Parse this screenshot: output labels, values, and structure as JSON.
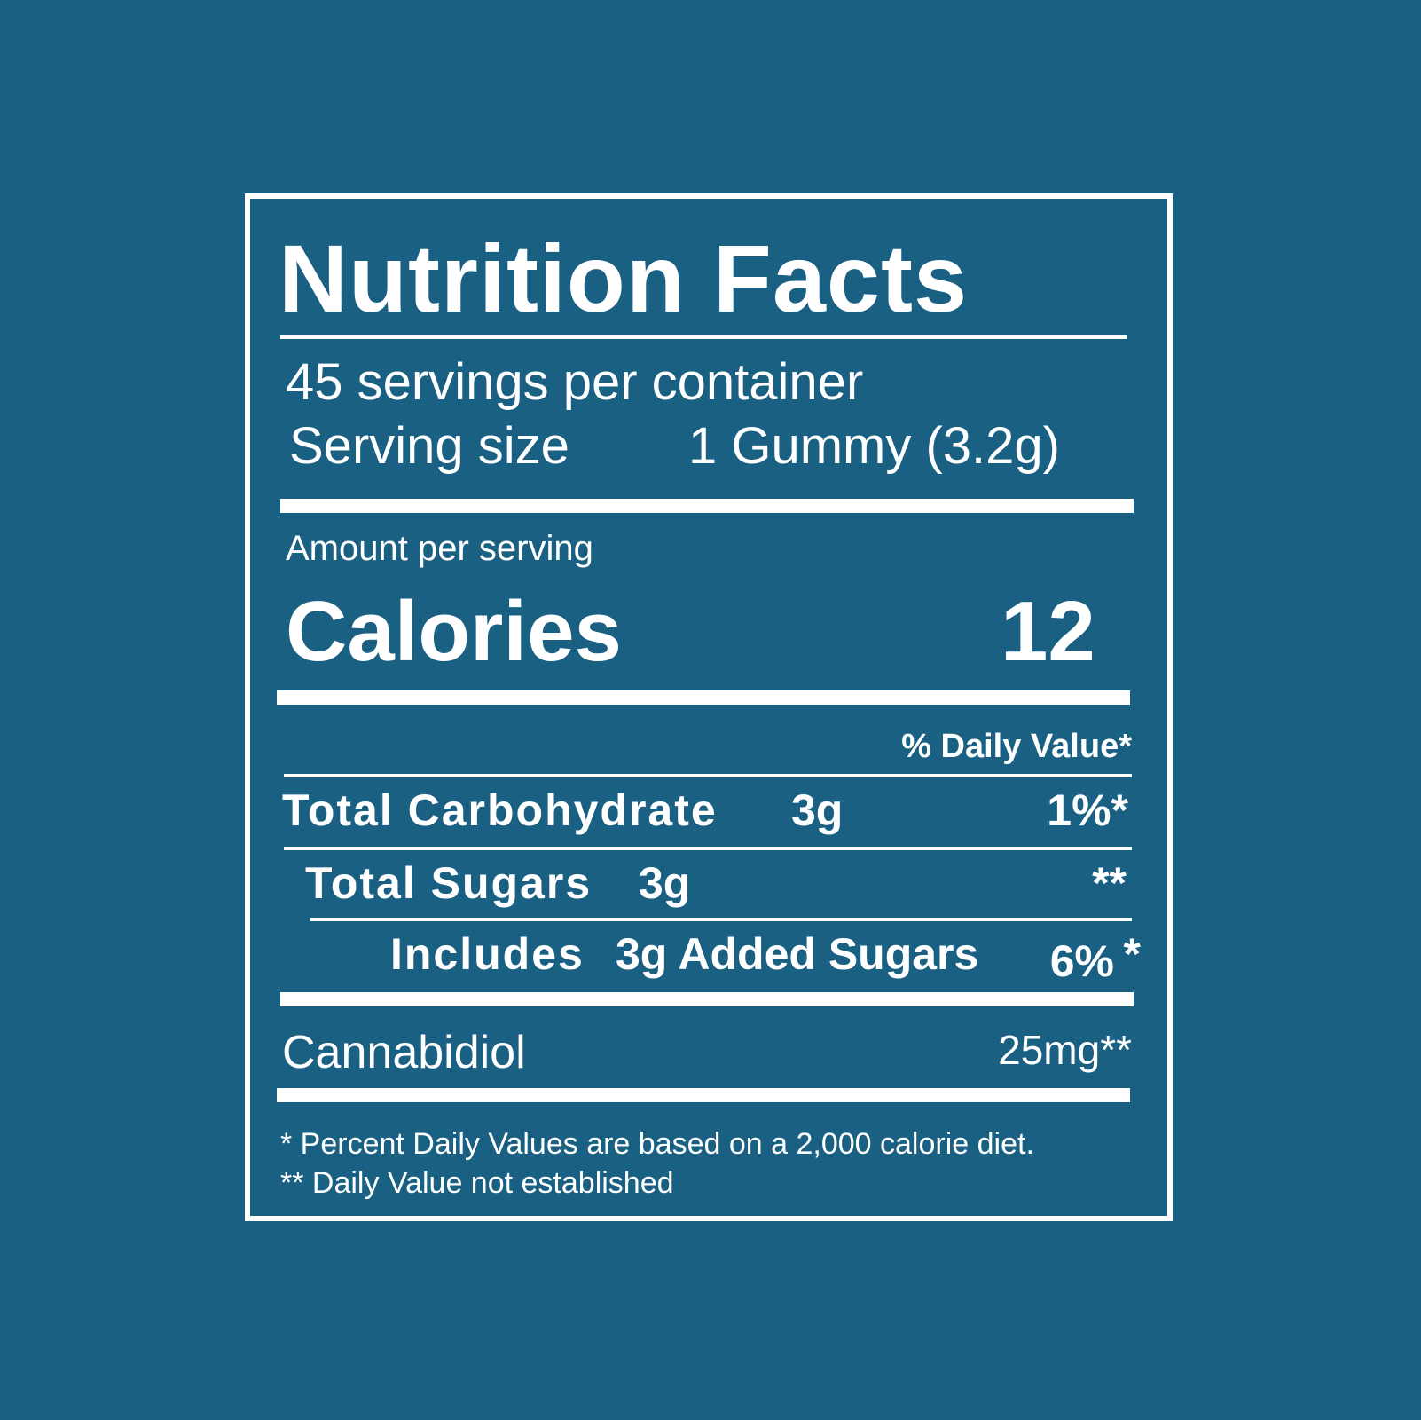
{
  "label": {
    "title": "Nutrition Facts",
    "servings_per_container": "45 servings per container",
    "serving_size_label": "Serving size",
    "serving_size_value": "1 Gummy (3.2g)",
    "amount_per_serving": "Amount per serving",
    "calories_label": "Calories",
    "calories_value": "12",
    "daily_value_header": "% Daily Value*",
    "rows": [
      {
        "name": "Total Carbohydrate",
        "amount": "3g",
        "dv": "1%*"
      },
      {
        "name": "Total Sugars",
        "amount": "3g",
        "dv": "**"
      },
      {
        "name": "Includes",
        "amount": "3g Added Sugars",
        "dv": "6%",
        "dv_mark": "*"
      },
      {
        "name": "Cannabidiol",
        "amount": "",
        "dv": "25mg**"
      }
    ],
    "footnotes": [
      "* Percent Daily Values are based on a 2,000 calorie diet.",
      "** Daily Value not established"
    ]
  },
  "colors": {
    "background": "#196083",
    "foreground": "#ffffff"
  }
}
